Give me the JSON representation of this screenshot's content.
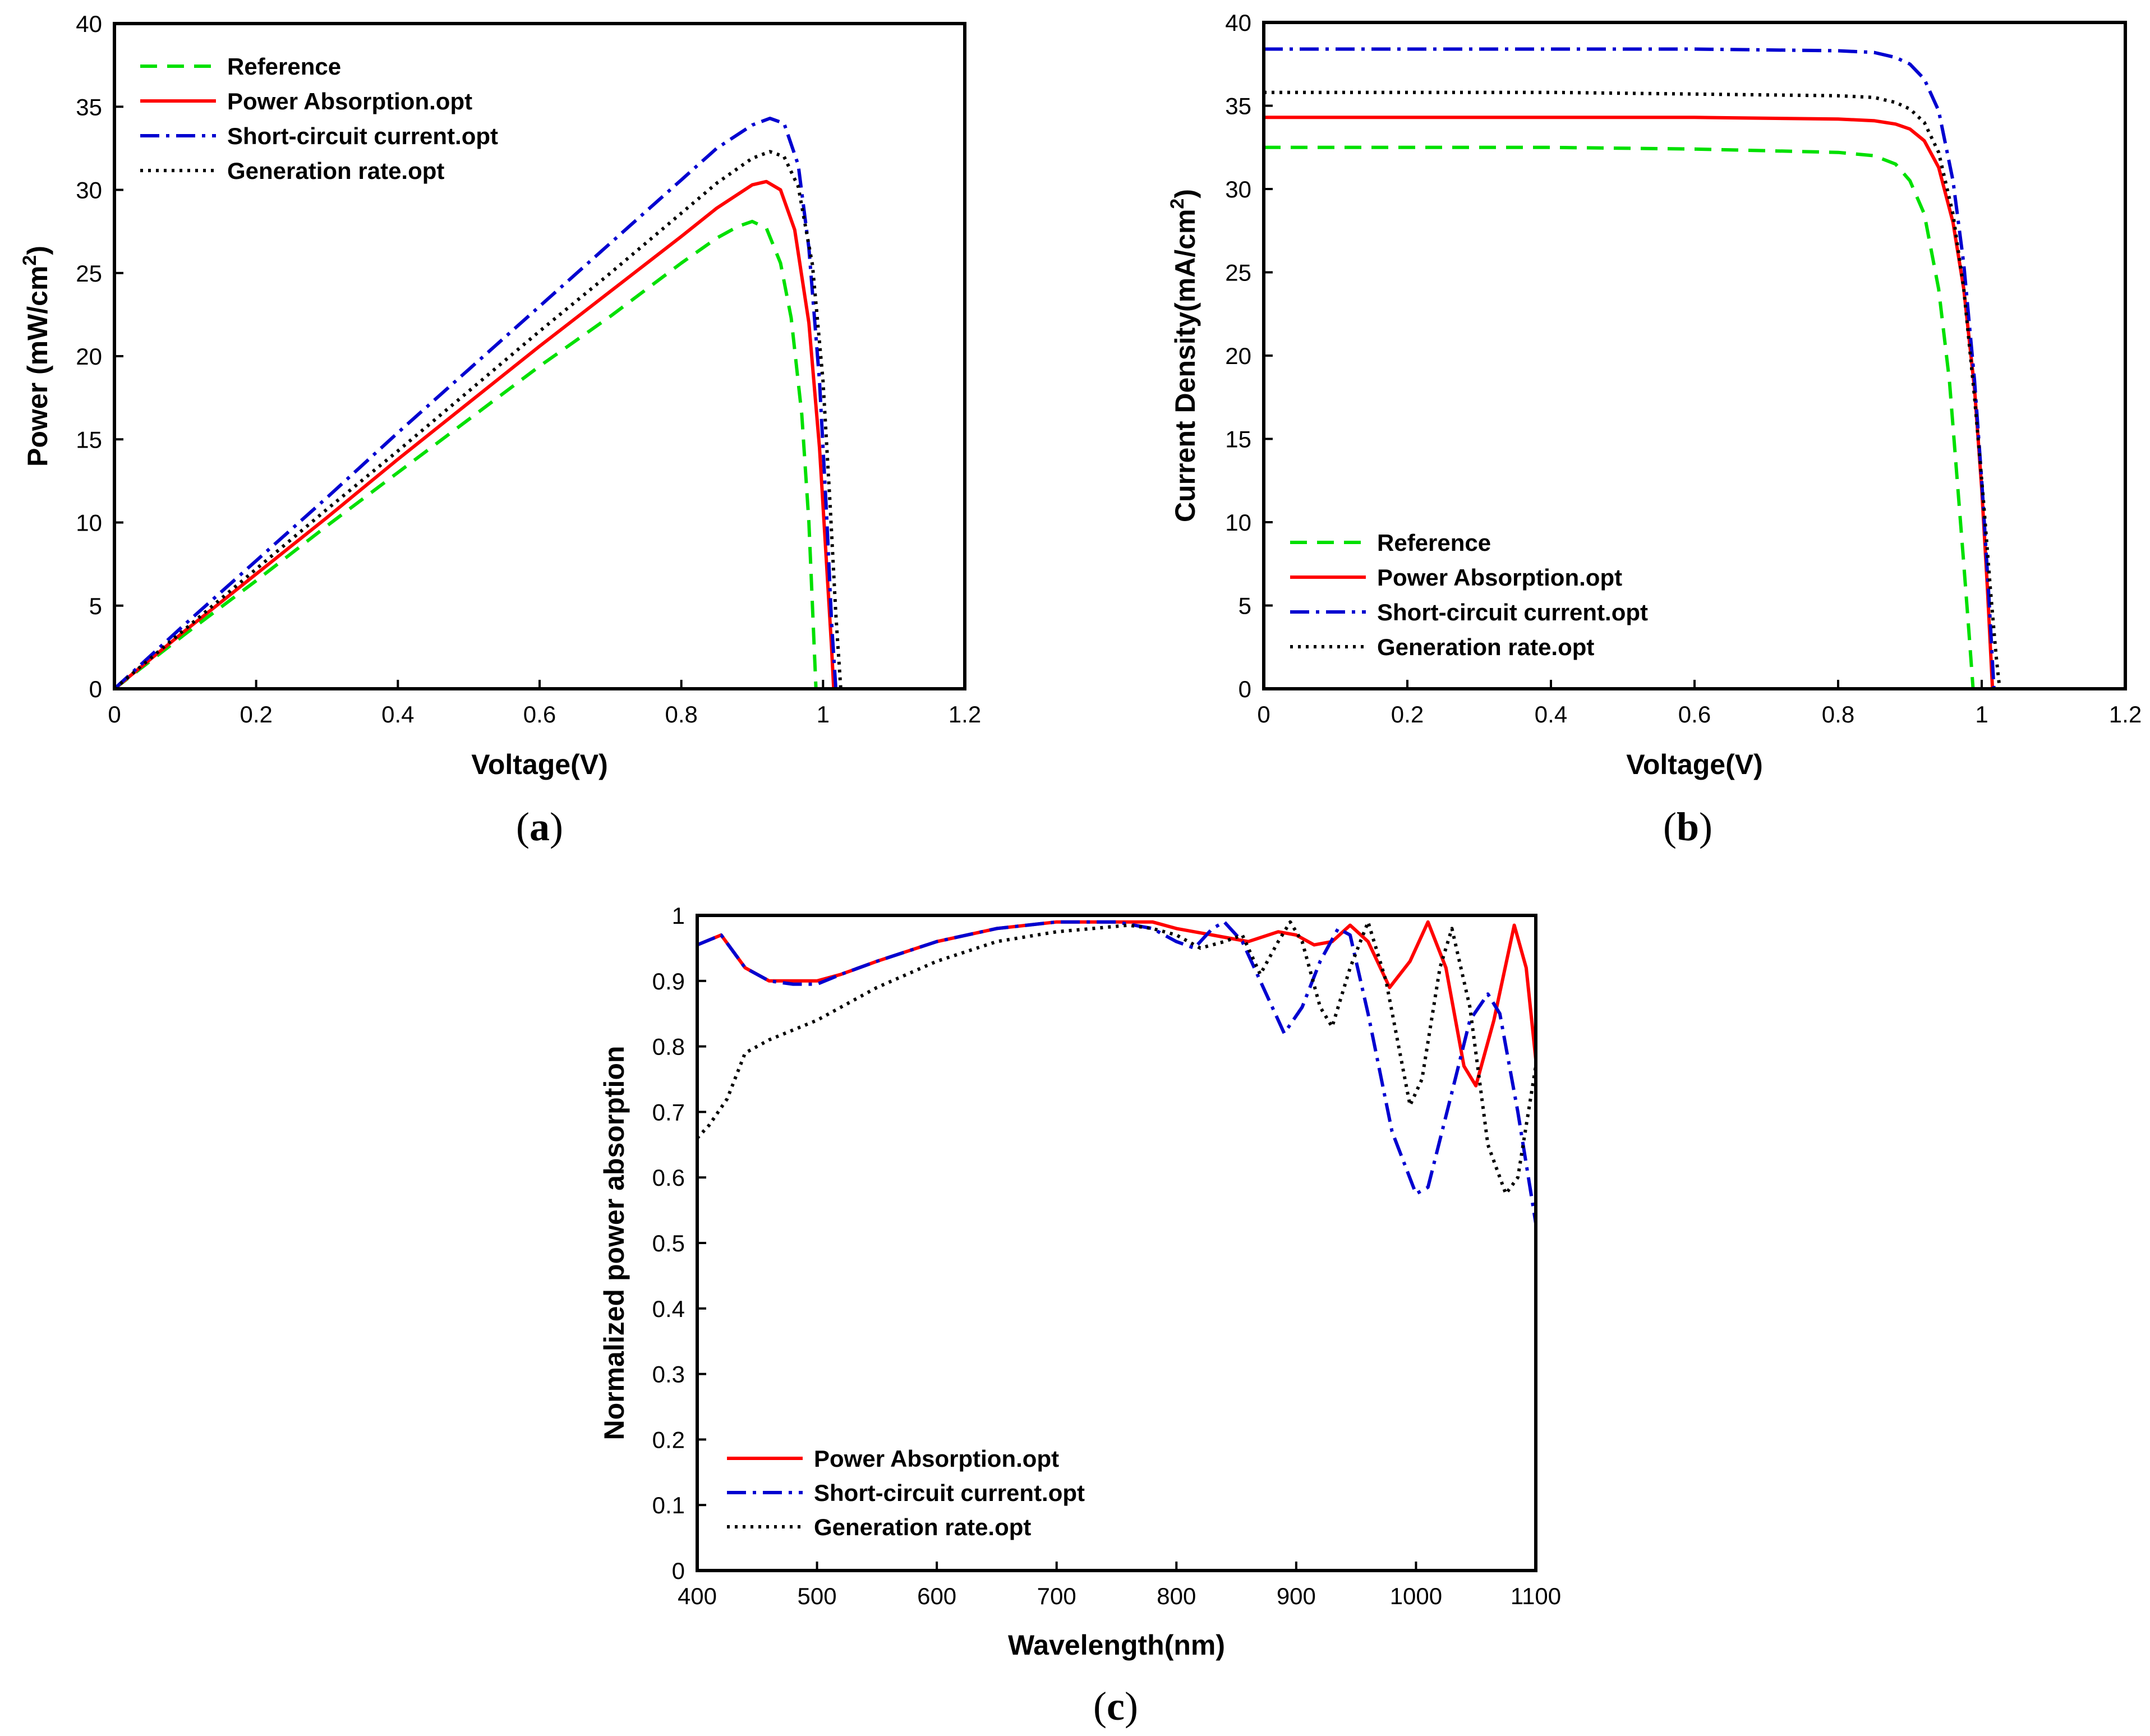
{
  "chart_data": [
    {
      "id": "a",
      "type": "line",
      "caption": "(a)",
      "caption_letter": "a",
      "xlabel": "Voltage(V)",
      "ylabel": "Power (mW/cm",
      "ylabel_sup": "2",
      "ylabel_end": ")",
      "xlim": [
        0,
        1.2
      ],
      "ylim": [
        0,
        40
      ],
      "xticks": [
        0,
        0.2,
        0.4,
        0.6,
        0.8,
        1,
        1.2
      ],
      "yticks": [
        0,
        5,
        10,
        15,
        20,
        25,
        30,
        35,
        40
      ],
      "xtick_labels": [
        "0",
        "0.2",
        "0.4",
        "0.6",
        "0.8",
        "1",
        "1.2"
      ],
      "ytick_labels": [
        "0",
        "5",
        "10",
        "15",
        "20",
        "25",
        "30",
        "35",
        "40"
      ],
      "legend_position": "top-left",
      "series": [
        {
          "name": "Reference",
          "color": "#00e000",
          "style": "dashed",
          "x": [
            0,
            0.1,
            0.2,
            0.3,
            0.4,
            0.5,
            0.6,
            0.7,
            0.8,
            0.85,
            0.88,
            0.9,
            0.92,
            0.94,
            0.955,
            0.97,
            0.98,
            0.985,
            0.99
          ],
          "y": [
            0,
            3.3,
            6.5,
            9.8,
            13.0,
            16.2,
            19.4,
            22.4,
            25.6,
            27.1,
            27.8,
            28.1,
            27.7,
            25.6,
            22.3,
            16.5,
            10.0,
            5.0,
            0
          ]
        },
        {
          "name": "Power Absorption.opt",
          "color": "#ff0000",
          "style": "solid",
          "x": [
            0,
            0.1,
            0.2,
            0.3,
            0.4,
            0.5,
            0.6,
            0.7,
            0.8,
            0.85,
            0.9,
            0.92,
            0.94,
            0.96,
            0.98,
            0.995,
            1.005,
            1.012,
            1.015
          ],
          "y": [
            0,
            3.5,
            6.9,
            10.3,
            13.8,
            17.2,
            20.6,
            23.9,
            27.2,
            28.9,
            30.3,
            30.5,
            30.0,
            27.6,
            22.0,
            14.5,
            7.5,
            2.5,
            0
          ]
        },
        {
          "name": "Short-circuit current.opt",
          "color": "#0000d0",
          "style": "dashdot",
          "x": [
            0,
            0.1,
            0.2,
            0.3,
            0.4,
            0.5,
            0.6,
            0.7,
            0.8,
            0.85,
            0.9,
            0.925,
            0.945,
            0.965,
            0.98,
            0.995,
            1.005,
            1.012,
            1.018
          ],
          "y": [
            0,
            3.9,
            7.7,
            11.5,
            15.4,
            19.2,
            23.0,
            26.8,
            30.6,
            32.5,
            33.9,
            34.3,
            34.0,
            31.5,
            26.5,
            18.5,
            10.5,
            4.0,
            0
          ]
        },
        {
          "name": "Generation rate.opt",
          "color": "#000000",
          "style": "dotted",
          "x": [
            0,
            0.1,
            0.2,
            0.3,
            0.4,
            0.5,
            0.6,
            0.7,
            0.8,
            0.85,
            0.9,
            0.925,
            0.945,
            0.965,
            0.985,
            1.0,
            1.01,
            1.018,
            1.025
          ],
          "y": [
            0,
            3.6,
            7.2,
            10.8,
            14.3,
            17.9,
            21.5,
            25.0,
            28.6,
            30.4,
            31.9,
            32.3,
            32.0,
            30.2,
            25.5,
            18.5,
            11.0,
            4.5,
            0
          ]
        }
      ]
    },
    {
      "id": "b",
      "type": "line",
      "caption": "(b)",
      "caption_letter": "b",
      "xlabel": "Voltage(V)",
      "ylabel": "Current Density(mA/cm",
      "ylabel_sup": "2",
      "ylabel_end": ")",
      "xlim": [
        0,
        1.2
      ],
      "ylim": [
        0,
        40
      ],
      "xticks": [
        0,
        0.2,
        0.4,
        0.6,
        0.8,
        1,
        1.2
      ],
      "yticks": [
        0,
        5,
        10,
        15,
        20,
        25,
        30,
        35,
        40
      ],
      "xtick_labels": [
        "0",
        "0.2",
        "0.4",
        "0.6",
        "0.8",
        "1",
        "1.2"
      ],
      "ytick_labels": [
        "0",
        "5",
        "10",
        "15",
        "20",
        "25",
        "30",
        "35",
        "40"
      ],
      "legend_position": "bottom-left",
      "series": [
        {
          "name": "Reference",
          "color": "#00e000",
          "style": "dashed",
          "x": [
            0,
            0.2,
            0.4,
            0.6,
            0.8,
            0.85,
            0.88,
            0.9,
            0.92,
            0.94,
            0.955,
            0.965,
            0.975,
            0.982,
            0.988
          ],
          "y": [
            32.5,
            32.5,
            32.5,
            32.4,
            32.2,
            32.0,
            31.5,
            30.5,
            28.5,
            24.0,
            18.5,
            13.0,
            7.5,
            3.5,
            0
          ]
        },
        {
          "name": "Power Absorption.opt",
          "color": "#ff0000",
          "style": "solid",
          "x": [
            0,
            0.2,
            0.4,
            0.6,
            0.8,
            0.85,
            0.88,
            0.9,
            0.92,
            0.94,
            0.96,
            0.975,
            0.99,
            1.0,
            1.008,
            1.015
          ],
          "y": [
            34.3,
            34.3,
            34.3,
            34.3,
            34.2,
            34.1,
            33.9,
            33.6,
            32.9,
            31.3,
            28.0,
            24.0,
            18.0,
            12.0,
            6.0,
            0
          ]
        },
        {
          "name": "Short-circuit current.opt",
          "color": "#0000d0",
          "style": "dashdot",
          "x": [
            0,
            0.2,
            0.4,
            0.6,
            0.8,
            0.85,
            0.88,
            0.9,
            0.92,
            0.94,
            0.96,
            0.975,
            0.99,
            1.0,
            1.01,
            1.017
          ],
          "y": [
            38.4,
            38.4,
            38.4,
            38.4,
            38.3,
            38.2,
            37.9,
            37.5,
            36.6,
            34.7,
            30.5,
            25.5,
            18.5,
            12.5,
            5.5,
            0
          ]
        },
        {
          "name": "Generation rate.opt",
          "color": "#000000",
          "style": "dotted",
          "x": [
            0,
            0.2,
            0.4,
            0.6,
            0.8,
            0.85,
            0.88,
            0.9,
            0.92,
            0.94,
            0.96,
            0.975,
            0.99,
            1.002,
            1.012,
            1.02,
            1.025
          ],
          "y": [
            35.8,
            35.8,
            35.8,
            35.7,
            35.6,
            35.5,
            35.2,
            34.8,
            34.0,
            32.2,
            28.5,
            24.0,
            17.5,
            11.5,
            6.0,
            2.0,
            0
          ]
        }
      ]
    },
    {
      "id": "c",
      "type": "line",
      "caption": "(c)",
      "caption_letter": "c",
      "xlabel": "Wavelength(nm)",
      "ylabel": "Normalized power absorption",
      "xlim": [
        400,
        1100
      ],
      "ylim": [
        0,
        1
      ],
      "xticks": [
        400,
        500,
        600,
        700,
        800,
        900,
        1000,
        1100
      ],
      "yticks": [
        0,
        0.1,
        0.2,
        0.3,
        0.4,
        0.5,
        0.6,
        0.7,
        0.8,
        0.9,
        1
      ],
      "xtick_labels": [
        "400",
        "500",
        "600",
        "700",
        "800",
        "900",
        "1000",
        "1100"
      ],
      "ytick_labels": [
        "0",
        "0.1",
        "0.2",
        "0.3",
        "0.4",
        "0.5",
        "0.6",
        "0.7",
        "0.8",
        "0.9",
        "1"
      ],
      "legend_position": "bottom-left",
      "series": [
        {
          "name": "Power Absorption.opt",
          "color": "#ff0000",
          "style": "solid",
          "x": [
            400,
            420,
            440,
            460,
            480,
            500,
            520,
            550,
            600,
            650,
            700,
            750,
            780,
            800,
            830,
            860,
            885,
            900,
            915,
            930,
            945,
            960,
            978,
            995,
            1010,
            1025,
            1040,
            1050,
            1065,
            1082,
            1092,
            1100
          ],
          "y": [
            0.955,
            0.97,
            0.92,
            0.9,
            0.9,
            0.9,
            0.91,
            0.93,
            0.96,
            0.98,
            0.99,
            0.99,
            0.99,
            0.98,
            0.97,
            0.96,
            0.975,
            0.97,
            0.955,
            0.96,
            0.985,
            0.96,
            0.89,
            0.93,
            0.99,
            0.92,
            0.77,
            0.74,
            0.84,
            0.985,
            0.92,
            0.78
          ]
        },
        {
          "name": "Short-circuit current.opt",
          "color": "#0000d0",
          "style": "dashdot",
          "x": [
            400,
            420,
            440,
            460,
            480,
            500,
            520,
            550,
            600,
            650,
            700,
            750,
            780,
            800,
            815,
            830,
            840,
            855,
            870,
            890,
            905,
            920,
            935,
            945,
            960,
            980,
            1000,
            1010,
            1030,
            1045,
            1060,
            1070,
            1085,
            1100
          ],
          "y": [
            0.955,
            0.97,
            0.92,
            0.9,
            0.895,
            0.895,
            0.91,
            0.93,
            0.96,
            0.98,
            0.99,
            0.99,
            0.98,
            0.96,
            0.95,
            0.98,
            0.99,
            0.96,
            0.9,
            0.82,
            0.86,
            0.93,
            0.98,
            0.97,
            0.85,
            0.67,
            0.575,
            0.585,
            0.73,
            0.84,
            0.88,
            0.85,
            0.7,
            0.53
          ]
        },
        {
          "name": "Generation rate.opt",
          "color": "#000000",
          "style": "dotted",
          "x": [
            400,
            410,
            425,
            440,
            460,
            500,
            550,
            600,
            650,
            700,
            730,
            760,
            780,
            800,
            820,
            840,
            855,
            870,
            885,
            895,
            905,
            920,
            930,
            945,
            960,
            975,
            995,
            1005,
            1020,
            1030,
            1045,
            1060,
            1075,
            1085,
            1100
          ],
          "y": [
            0.66,
            0.68,
            0.72,
            0.79,
            0.81,
            0.84,
            0.89,
            0.93,
            0.96,
            0.975,
            0.98,
            0.985,
            0.98,
            0.97,
            0.95,
            0.96,
            0.97,
            0.91,
            0.96,
            0.99,
            0.96,
            0.86,
            0.83,
            0.92,
            0.99,
            0.9,
            0.71,
            0.75,
            0.92,
            0.98,
            0.86,
            0.65,
            0.575,
            0.6,
            0.77
          ]
        }
      ]
    }
  ]
}
